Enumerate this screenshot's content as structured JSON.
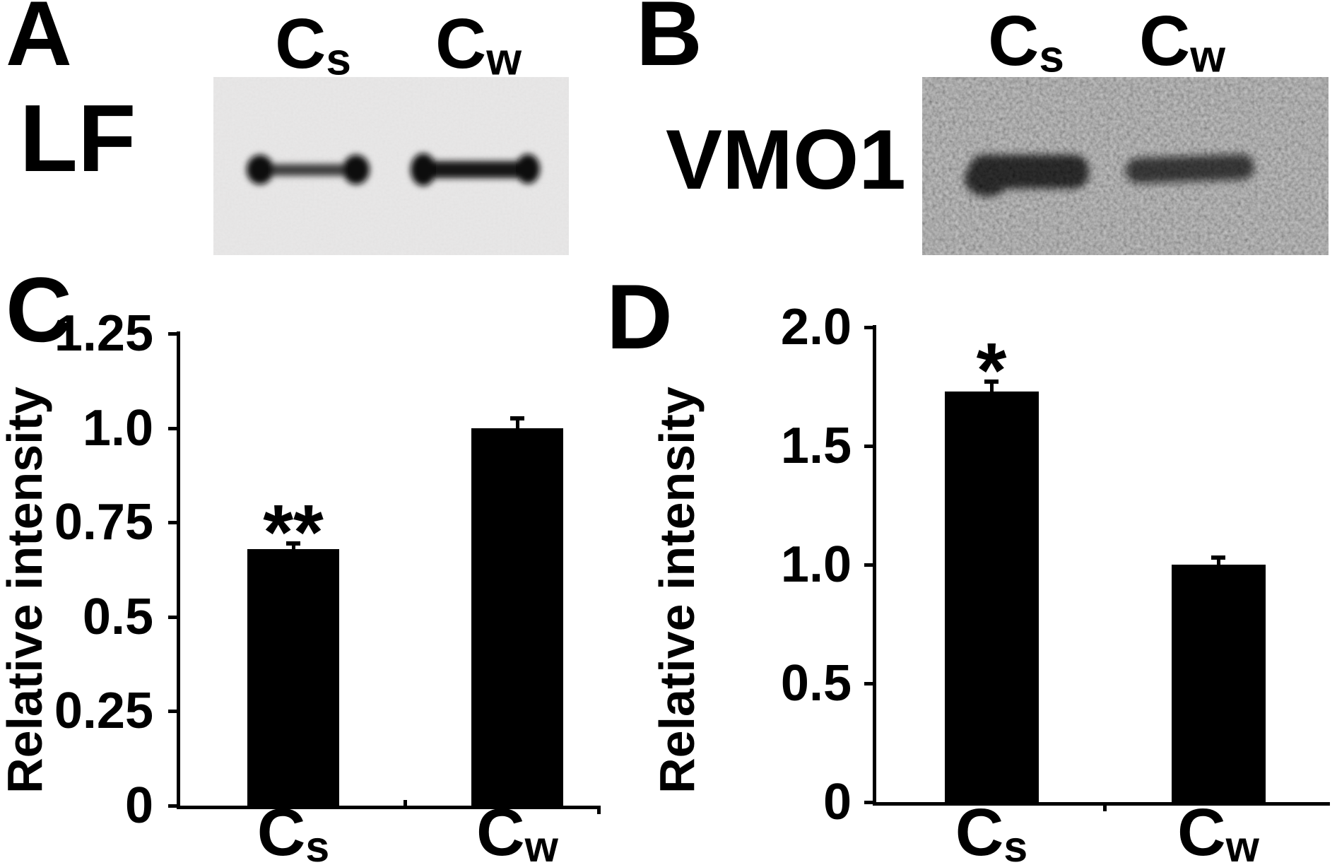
{
  "panels": {
    "A": {
      "label": "A",
      "protein": "LF",
      "lanes": [
        {
          "main": "C",
          "sub": "s"
        },
        {
          "main": "C",
          "sub": "w"
        }
      ]
    },
    "B": {
      "label": "B",
      "protein": "VMO1",
      "lanes": [
        {
          "main": "C",
          "sub": "s"
        },
        {
          "main": "C",
          "sub": "w"
        }
      ]
    },
    "C": {
      "label": "C"
    },
    "D": {
      "label": "D"
    }
  },
  "colors": {
    "bar": "#000000",
    "text": "#000000",
    "background": "#ffffff",
    "blot_a_background": "#e9e8e8",
    "blot_b_background": "#8f8f8f"
  },
  "chart_data": [
    {
      "id": "C",
      "type": "bar",
      "title": "",
      "xlabel": "",
      "ylabel": "Relative intensity",
      "categories": [
        "Cs",
        "Cw"
      ],
      "categories_rich": [
        {
          "main": "C",
          "sub": "s"
        },
        {
          "main": "C",
          "sub": "w"
        }
      ],
      "values": [
        0.68,
        1.0
      ],
      "errors": [
        0.015,
        0.025
      ],
      "annotations": [
        "**",
        ""
      ],
      "yticks": [
        0,
        0.25,
        0.5,
        0.75,
        1.0,
        1.25
      ],
      "ytick_labels": [
        "0",
        "0.25",
        "0.5",
        "0.75",
        "1.0",
        "1.25"
      ],
      "ylim": [
        0,
        1.25
      ],
      "grid": false,
      "legend": null,
      "bar_color": "#000000"
    },
    {
      "id": "D",
      "type": "bar",
      "title": "",
      "xlabel": "",
      "ylabel": "Relative intensity",
      "categories": [
        "Cs",
        "Cw"
      ],
      "categories_rich": [
        {
          "main": "C",
          "sub": "s"
        },
        {
          "main": "C",
          "sub": "w"
        }
      ],
      "values": [
        1.73,
        1.0
      ],
      "errors": [
        0.04,
        0.03
      ],
      "annotations": [
        "*",
        ""
      ],
      "yticks": [
        0,
        0.5,
        1.0,
        1.5,
        2.0
      ],
      "ytick_labels": [
        "0",
        "0.5",
        "1.0",
        "1.5",
        "2.0"
      ],
      "ylim": [
        0,
        2.0
      ],
      "grid": false,
      "legend": null,
      "bar_color": "#000000"
    }
  ]
}
